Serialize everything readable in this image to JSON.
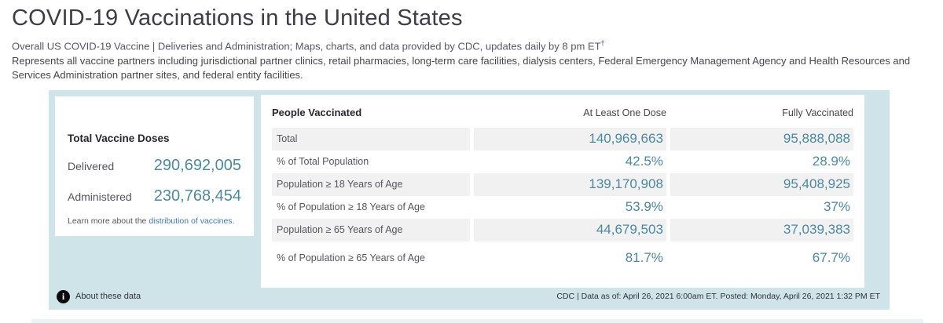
{
  "page": {
    "title": "COVID-19 Vaccinations in the United States",
    "subtitle_line1": "Overall US COVID-19 Vaccine | Deliveries and Administration; Maps, charts, and data provided by CDC, updates daily by 8 pm ET",
    "subtitle_dagger": "†",
    "subtitle_line2": "Represents all vaccine partners including jurisdictional partner clinics, retail pharmacies, long-term care facilities, dialysis centers, Federal Emergency Management Agency and Health Resources and Services Administration partner sites, and federal entity facilities."
  },
  "doses_card": {
    "title": "Total Vaccine Doses",
    "rows": [
      {
        "label": "Delivered",
        "value": "290,692,005"
      },
      {
        "label": "Administered",
        "value": "230,768,454"
      }
    ],
    "learn_more_prefix": "Learn more about the ",
    "learn_more_link": "distribution of vaccines."
  },
  "vaccinated_table": {
    "title": "People Vaccinated",
    "columns": [
      "At Least One Dose",
      "Fully Vaccinated"
    ],
    "rows": [
      {
        "label": "Total",
        "at_least_one_dose": "140,969,663",
        "fully_vaccinated": "95,888,088"
      },
      {
        "label": "% of Total Population",
        "at_least_one_dose": "42.5%",
        "fully_vaccinated": "28.9%"
      },
      {
        "label": "Population ≥ 18 Years of Age",
        "at_least_one_dose": "139,170,908",
        "fully_vaccinated": "95,408,925"
      },
      {
        "label": "% of Population ≥ 18 Years of Age",
        "at_least_one_dose": "53.9%",
        "fully_vaccinated": "37%"
      },
      {
        "label": "Population ≥ 65 Years of Age",
        "at_least_one_dose": "44,679,503",
        "fully_vaccinated": "37,039,383"
      },
      {
        "label": "% of Population ≥ 65 Years of Age",
        "at_least_one_dose": "81.7%",
        "fully_vaccinated": "67.7%"
      }
    ]
  },
  "footer": {
    "about_label": "About these data",
    "info_icon": "i",
    "attribution": "CDC | Data as of: April 26, 2021 6:00am ET. Posted: Monday, April 26, 2021 1:32 PM ET"
  },
  "colors": {
    "panel_bg": "#cfe4e9",
    "strip_bg": "#ecf3f5",
    "number_teal": "#4a8aa0",
    "link_blue": "#3c78a9",
    "shaded_row": "#f1f1f1"
  }
}
